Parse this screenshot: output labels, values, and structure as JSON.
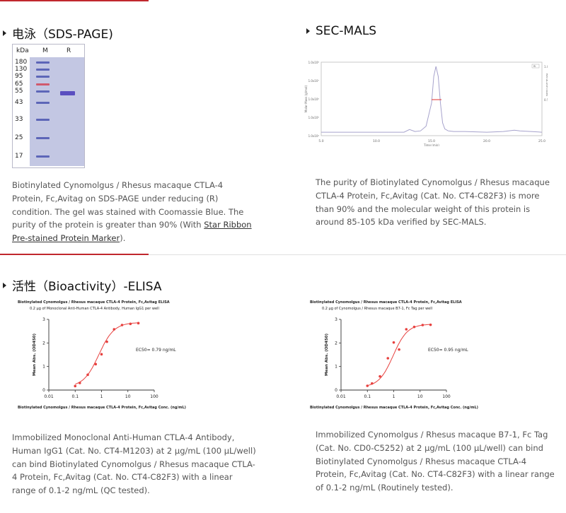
{
  "sections": {
    "sds": {
      "title": "电泳（SDS-PAGE)"
    },
    "malS": {
      "title": "SEC-MALS"
    },
    "elisa": {
      "title": "活性（Bioactivity）-ELISA"
    }
  },
  "gel": {
    "col_kda": "kDa",
    "col_m": "M",
    "col_r": "R",
    "markers": [
      "180",
      "130",
      "95",
      "65",
      "55",
      "43",
      "33",
      "25",
      "17"
    ]
  },
  "descriptions": {
    "sds_text": "Biotinylated Cynomolgus / Rhesus macaque CTLA-4 Protein, Fc,Avitag on SDS-PAGE under reducing (R) condition. The gel was stained with Coomassie Blue. The purity of the protein is greater than 90% (With ",
    "sds_link": "Star Ribbon Pre-stained Protein Marker",
    "sds_end": ").",
    "mals_text": "The purity of Biotinylated Cynomolgus / Rhesus macaque CTLA-4 Protein, Fc,Avitag (Cat. No. CT4-C82F3) is more than 90% and the molecular weight of this protein is around 85-105 kDa verified by SEC-MALS.",
    "elisa1_text": "Immobilized Monoclonal Anti-Human CTLA-4 Antibody, Human IgG1 (Cat. No. CT4-M1203) at 2 μg/mL (100 μL/well) can bind Biotinylated Cynomolgus / Rhesus macaque CTLA-4 Protein, Fc,Avitag (Cat. No. CT4-C82F3) with a linear range of 0.1-2 ng/mL (QC tested).",
    "elisa2_text": "Immobilized Cynomolgus / Rhesus macaque B7-1, Fc Tag (Cat. No. CD0-C5252) at 2 μg/mL (100 μL/well) can bind Biotinylated Cynomolgus / Rhesus macaque CTLA-4 Protein, Fc,Avitag (Cat. No. CT4-C82F3) with a linear range of 0.1-2 ng/mL (Routinely tested)."
  },
  "chart_data": [
    {
      "type": "line",
      "title": "",
      "xlabel": "Time (min)",
      "ylabel": "Molar Mass (g/mol)",
      "y2label": "Refractive Index",
      "xlim": [
        5,
        25
      ],
      "x_ticks": [
        "5.0",
        "10.0",
        "15.0",
        "20.0",
        "25.0"
      ],
      "y_ticks": [
        "1.0x10⁴",
        "1.0x10⁵",
        "1.0x10⁶",
        "1.0x10⁷",
        "1.0x10⁸"
      ],
      "y2_ticks": [
        "0.5",
        "1.0"
      ],
      "legend": "RI",
      "series": [
        {
          "name": "RI",
          "x": [
            5,
            10,
            12.5,
            13.0,
            13.5,
            14.0,
            14.5,
            15.0,
            15.2,
            15.4,
            15.6,
            15.8,
            16.0,
            16.2,
            16.5,
            17.0,
            18.0,
            20.0,
            21.5,
            22.5,
            23.0,
            24.0,
            25.0
          ],
          "y": [
            0.01,
            0.01,
            0.01,
            0.05,
            0.02,
            0.03,
            0.1,
            0.45,
            0.85,
            1.0,
            0.85,
            0.45,
            0.15,
            0.06,
            0.03,
            0.02,
            0.02,
            0.01,
            0.02,
            0.04,
            0.03,
            0.02,
            0.01
          ]
        },
        {
          "name": "Molar mass",
          "x": [
            15.0,
            15.3,
            15.6,
            15.9
          ],
          "y": [
            100000,
            100000,
            100000,
            100000
          ]
        }
      ]
    },
    {
      "type": "scatter",
      "title": "Biotinylated Cynomolgus / Rhesus macaque CTLA-4 Protein, Fc,Avitag ELISA",
      "subtitle": "0.2 μg of Monoclonal Anti-Human CTLA-4 Antibody, Human IgG1 per well",
      "xlabel": "Biotinylated Cynomolgus / Rhesus macaque CTLA-4 Protein, Fc,Avitag Conc. (ng/mL)",
      "ylabel": "Mean Abs. (OD450)",
      "x_scale": "log",
      "xlim": [
        0.01,
        100
      ],
      "ylim": [
        0,
        3
      ],
      "x_ticks": [
        "0.01",
        "0.1",
        "1",
        "10",
        "100"
      ],
      "y_ticks": [
        "0",
        "1",
        "2",
        "3"
      ],
      "annotation": "EC50= 0.79 ng/mL",
      "x": [
        0.1,
        0.15,
        0.3,
        0.6,
        1.0,
        1.6,
        3.0,
        6.0,
        12.5,
        25.0
      ],
      "y": [
        0.17,
        0.3,
        0.65,
        1.1,
        1.52,
        2.05,
        2.58,
        2.76,
        2.81,
        2.84
      ],
      "fit": {
        "bottom": 0.13,
        "top": 2.87,
        "ec50": 0.79,
        "hill": 1.5
      }
    },
    {
      "type": "scatter",
      "title": "Biotinylated Cynomolgus / Rhesus macaque CTLA-4 Protein, Fc,Avitag ELISA",
      "subtitle": "0.2 μg of Cynomolgus / Rhesus macaque B7-1, Fc Tag per well",
      "xlabel": "Biotinylated Cynomolgus / Rhesus macaque CTLA-4 Protein, Fc,Avitag Conc. (ng/mL)",
      "ylabel": "Mean Abs. (OD450)",
      "x_scale": "log",
      "xlim": [
        0.01,
        100
      ],
      "ylim": [
        0,
        3
      ],
      "x_ticks": [
        "0.01",
        "0.1",
        "1",
        "10",
        "100"
      ],
      "y_ticks": [
        "0",
        "1",
        "2",
        "3"
      ],
      "annotation": "EC50= 0.95 ng/mL",
      "x": [
        0.1,
        0.15,
        0.3,
        0.6,
        1.0,
        1.6,
        3.0,
        6.0,
        12.5,
        25.0
      ],
      "y": [
        0.18,
        0.28,
        0.58,
        1.35,
        2.02,
        1.72,
        2.58,
        2.68,
        2.76,
        2.77
      ],
      "fit": {
        "bottom": 0.12,
        "top": 2.8,
        "ec50": 0.95,
        "hill": 1.6
      }
    }
  ]
}
